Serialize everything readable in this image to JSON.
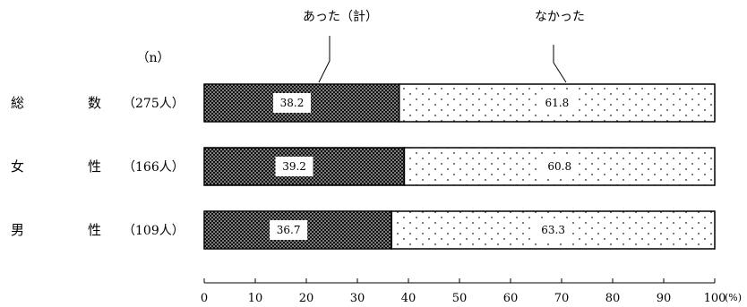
{
  "chart_data": {
    "type": "bar",
    "stacked": true,
    "orientation": "horizontal",
    "title": "",
    "xlabel": "",
    "ylabel": "",
    "n_header": "（n）",
    "unit_label": "(%)",
    "xlim": [
      0,
      100
    ],
    "x_ticks": [
      "0",
      "10",
      "20",
      "30",
      "40",
      "50",
      "60",
      "70",
      "80",
      "90",
      "100"
    ],
    "categories": [
      {
        "label_left": "総",
        "label_right": "数",
        "n": "（275人）"
      },
      {
        "label_left": "女",
        "label_right": "性",
        "n": "（166人）"
      },
      {
        "label_left": "男",
        "label_right": "性",
        "n": "（109人）"
      }
    ],
    "series": [
      {
        "name": "あった（計）",
        "values": [
          38.2,
          39.2,
          36.7
        ],
        "value_labels": [
          "38.2",
          "39.2",
          "36.7"
        ],
        "pattern": "dense-dots-dark"
      },
      {
        "name": "なかった",
        "values": [
          61.8,
          60.8,
          63.3
        ],
        "value_labels": [
          "61.8",
          "60.8",
          "63.3"
        ],
        "pattern": "sparse-dots-light"
      }
    ]
  }
}
